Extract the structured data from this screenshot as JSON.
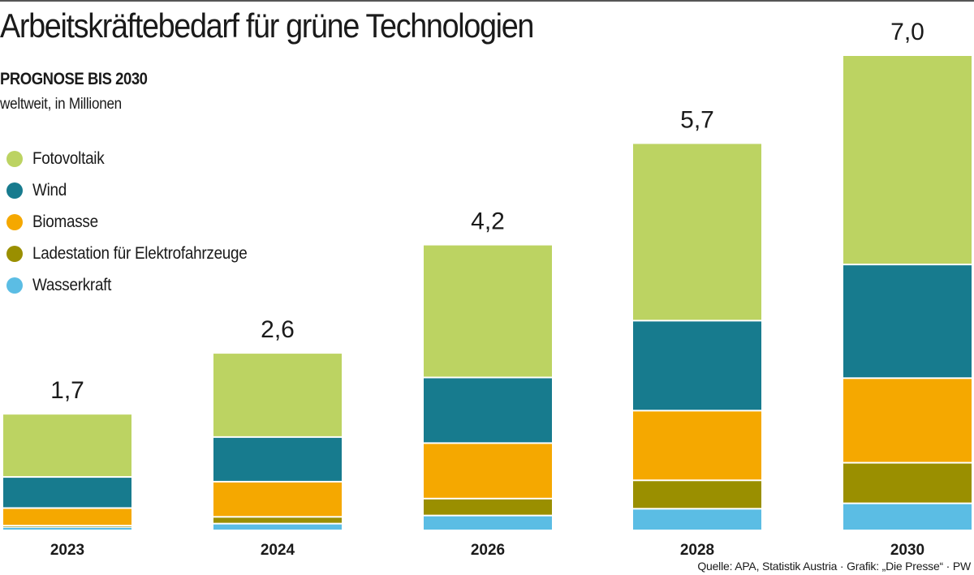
{
  "header": {
    "title": "Arbeitskräftebedarf für grüne Technologien",
    "subtitle": "PROGNOSE BIS 2030",
    "unit": "weltweit, in Millionen"
  },
  "source": "Quelle: APA, Statistik Austria · Grafik: „Die Presse“ · PW",
  "chart_data": {
    "type": "bar",
    "stacked": true,
    "title": "Arbeitskräftebedarf für grüne Technologien",
    "subtitle": "PROGNOSE BIS 2030",
    "ylabel": "weltweit, in Millionen",
    "xlabel": "",
    "ylim": [
      0,
      7.0
    ],
    "grid": false,
    "legend_position": "left",
    "categories": [
      "2023",
      "2024",
      "2026",
      "2028",
      "2030"
    ],
    "totals": [
      1.7,
      2.6,
      4.2,
      5.7,
      7.0
    ],
    "total_labels": [
      "1,7",
      "2,6",
      "4,2",
      "5,7",
      "7,0"
    ],
    "series": [
      {
        "name": "Wasserkraft",
        "color": "#5bbde4",
        "values": [
          0.05,
          0.1,
          0.22,
          0.32,
          0.4
        ]
      },
      {
        "name": "Ladestation für Elektrofahrzeuge",
        "color": "#9a8f00",
        "values": [
          0.02,
          0.1,
          0.25,
          0.42,
          0.6
        ]
      },
      {
        "name": "Biomasse",
        "color": "#f5a800",
        "values": [
          0.26,
          0.52,
          0.82,
          1.03,
          1.25
        ]
      },
      {
        "name": "Wind",
        "color": "#177b8e",
        "values": [
          0.46,
          0.66,
          0.97,
          1.33,
          1.68
        ]
      },
      {
        "name": "Fotovoltaik",
        "color": "#bcd362",
        "values": [
          0.91,
          1.22,
          1.94,
          2.6,
          3.07
        ]
      }
    ],
    "legend_order": [
      "Fotovoltaik",
      "Wind",
      "Biomasse",
      "Ladestation für Elektrofahrzeuge",
      "Wasserkraft"
    ]
  }
}
